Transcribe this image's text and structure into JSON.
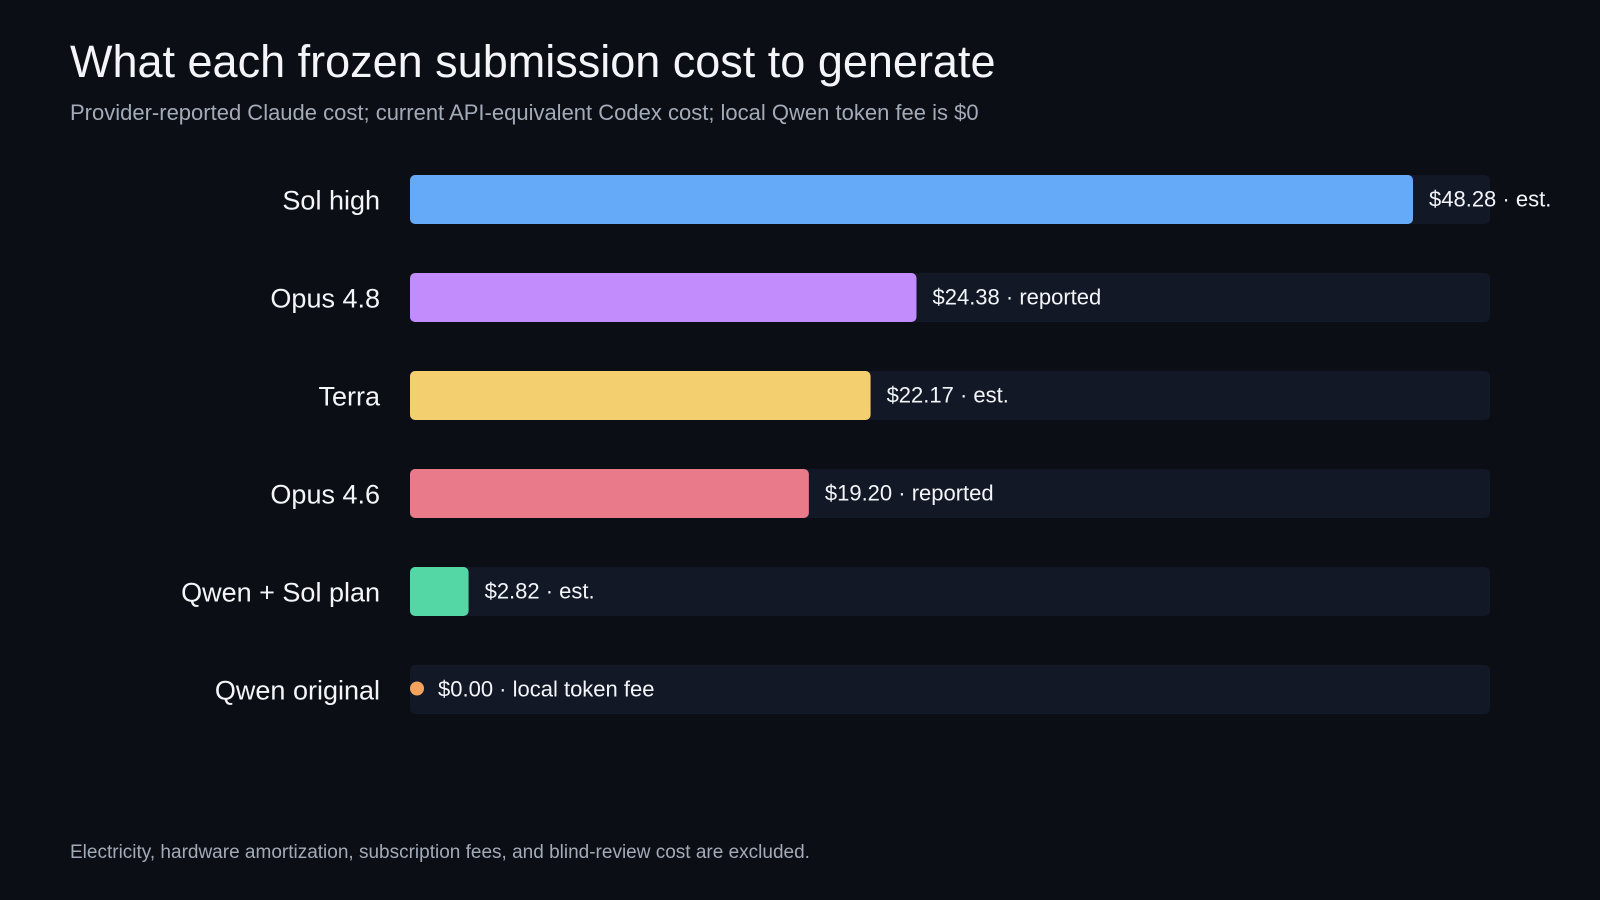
{
  "title": "What each frozen submission cost to generate",
  "subtitle": "Provider-reported Claude cost; current API-equivalent Codex cost; local Qwen token fee is $0",
  "footnote": "Electricity, hardware amortization, subscription fees, and blind-review cost are excluded.",
  "track_color": "#121826",
  "chart_data": {
    "type": "bar",
    "orientation": "horizontal",
    "title": "What each frozen submission cost to generate",
    "subtitle": "Provider-reported Claude cost; current API-equivalent Codex cost; local Qwen token fee is $0",
    "xlim": [
      0,
      52
    ],
    "grid": false,
    "categories": [
      "Sol high",
      "Opus 4.8",
      "Terra",
      "Opus 4.6",
      "Qwen + Sol plan",
      "Qwen original"
    ],
    "values": [
      48.28,
      24.38,
      22.17,
      19.2,
      2.82,
      0
    ],
    "value_labels": [
      "$48.28 · est.",
      "$24.38 · reported",
      "$22.17 · est.",
      "$19.20 · reported",
      "$2.82 · est.",
      "$0.00 · local token fee"
    ],
    "colors": [
      "#65aaf8",
      "#c28cfd",
      "#f3cf70",
      "#e87a8a",
      "#55d6a5",
      "#f5a35c"
    ]
  }
}
